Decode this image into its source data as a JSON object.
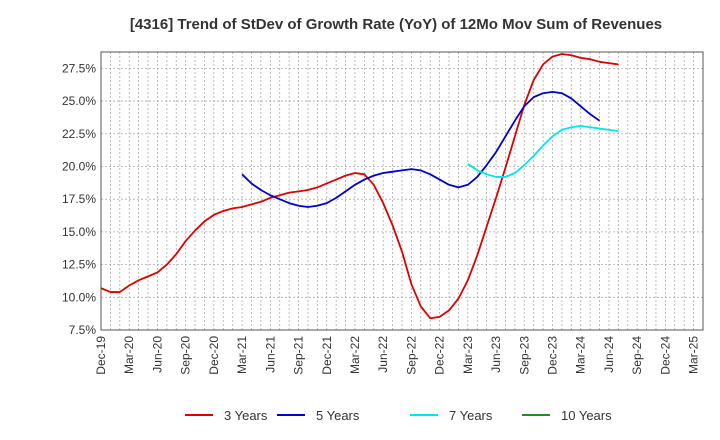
{
  "chart_data": {
    "type": "line",
    "title": "[4316]  Trend of StDev of Growth Rate (YoY) of 12Mo Mov Sum of Revenues",
    "xlabel": "",
    "ylabel": "",
    "ylim": [
      7.5,
      28.75
    ],
    "y_ticks": [
      7.5,
      10.0,
      12.5,
      15.0,
      17.5,
      20.0,
      22.5,
      25.0,
      27.5
    ],
    "y_tick_labels": [
      "7.5%",
      "10.0%",
      "12.5%",
      "15.0%",
      "17.5%",
      "20.0%",
      "22.5%",
      "25.0%",
      "27.5%"
    ],
    "x_tick_labels": [
      "Dec-19",
      "Mar-20",
      "Jun-20",
      "Sep-20",
      "Dec-20",
      "Mar-21",
      "Jun-21",
      "Sep-21",
      "Dec-21",
      "Mar-22",
      "Jun-22",
      "Sep-22",
      "Dec-22",
      "Mar-23",
      "Jun-23",
      "Sep-23",
      "Dec-23",
      "Mar-24",
      "Jun-24",
      "Sep-24",
      "Dec-24",
      "Mar-25"
    ],
    "x_month_count": 64,
    "grid": true,
    "legend_position": "bottom",
    "series": [
      {
        "name": "3 Years",
        "color": "#dd0000",
        "start_index": 0,
        "values": [
          10.7,
          10.4,
          10.4,
          10.9,
          11.3,
          11.6,
          11.9,
          12.5,
          13.3,
          14.3,
          15.1,
          15.8,
          16.3,
          16.6,
          16.8,
          16.9,
          17.1,
          17.3,
          17.6,
          17.8,
          18.0,
          18.1,
          18.2,
          18.4,
          18.7,
          19.0,
          19.3,
          19.5,
          19.4,
          18.6,
          17.2,
          15.5,
          13.5,
          11.0,
          9.3,
          8.4,
          8.5,
          9.0,
          9.9,
          11.3,
          13.2,
          15.4,
          17.6,
          19.9,
          22.3,
          24.7,
          26.6,
          27.8,
          28.4,
          28.6,
          28.5,
          28.3,
          28.2,
          28.0,
          27.9,
          27.8
        ]
      },
      {
        "name": "5 Years",
        "color": "#0000cc",
        "start_index": 15,
        "values": [
          19.4,
          18.7,
          18.2,
          17.8,
          17.5,
          17.2,
          17.0,
          16.9,
          17.0,
          17.2,
          17.6,
          18.1,
          18.6,
          19.0,
          19.3,
          19.5,
          19.6,
          19.7,
          19.8,
          19.7,
          19.4,
          19.0,
          18.6,
          18.4,
          18.6,
          19.2,
          20.1,
          21.1,
          22.3,
          23.5,
          24.6,
          25.3,
          25.6,
          25.7,
          25.6,
          25.2,
          24.6,
          24.0,
          23.5
        ]
      },
      {
        "name": "7 Years",
        "color": "#00e5ee",
        "start_index": 39,
        "values": [
          20.2,
          19.7,
          19.4,
          19.2,
          19.2,
          19.5,
          20.1,
          20.8,
          21.6,
          22.3,
          22.8,
          23.0,
          23.1,
          23.0,
          22.9,
          22.8,
          22.7
        ]
      },
      {
        "name": "10 Years",
        "color": "#228b22",
        "start_index": 0,
        "values": []
      }
    ]
  }
}
